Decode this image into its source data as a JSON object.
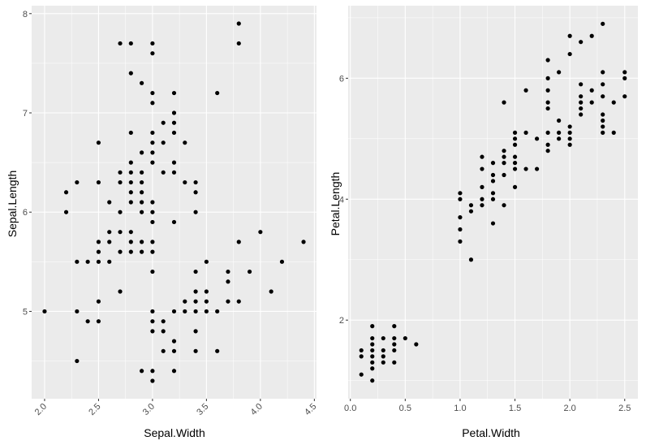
{
  "colors": {
    "panel_background": "#ebebeb",
    "grid_major": "#ffffff",
    "point": "#000000",
    "tick_label": "#4d4d4d"
  },
  "chart_data": [
    {
      "type": "scatter",
      "xlabel": "Sepal.Width",
      "ylabel": "Sepal.Length",
      "xlim": [
        1.88,
        4.52
      ],
      "ylim": [
        4.12,
        8.08
      ],
      "xticks": [
        2.0,
        2.5,
        3.0,
        3.5,
        4.0,
        4.5
      ],
      "xtick_labels": [
        "2.0",
        "2.5",
        "3.0",
        "3.5",
        "4.0",
        "4.5"
      ],
      "xtick_rotation": 45,
      "yticks": [
        5,
        6,
        7,
        8
      ],
      "ytick_labels": [
        "5",
        "6",
        "7",
        "8"
      ],
      "grid": true,
      "points": [
        [
          2.0,
          5.0
        ],
        [
          2.2,
          6.2
        ],
        [
          2.2,
          6.0
        ],
        [
          2.3,
          6.3
        ],
        [
          2.3,
          5.5
        ],
        [
          2.3,
          5.0
        ],
        [
          2.3,
          4.5
        ],
        [
          2.4,
          5.5
        ],
        [
          2.4,
          4.9
        ],
        [
          2.5,
          6.7
        ],
        [
          2.5,
          6.3
        ],
        [
          2.5,
          5.7
        ],
        [
          2.5,
          5.6
        ],
        [
          2.5,
          5.5
        ],
        [
          2.5,
          5.1
        ],
        [
          2.5,
          4.9
        ],
        [
          2.6,
          6.1
        ],
        [
          2.6,
          5.8
        ],
        [
          2.6,
          5.7
        ],
        [
          2.6,
          5.5
        ],
        [
          2.7,
          7.7
        ],
        [
          2.7,
          6.4
        ],
        [
          2.7,
          6.3
        ],
        [
          2.7,
          6.0
        ],
        [
          2.7,
          5.8
        ],
        [
          2.7,
          5.6
        ],
        [
          2.7,
          5.2
        ],
        [
          2.8,
          7.7
        ],
        [
          2.8,
          7.4
        ],
        [
          2.8,
          6.8
        ],
        [
          2.8,
          6.5
        ],
        [
          2.8,
          6.4
        ],
        [
          2.8,
          6.3
        ],
        [
          2.8,
          6.2
        ],
        [
          2.8,
          6.1
        ],
        [
          2.8,
          5.8
        ],
        [
          2.8,
          5.7
        ],
        [
          2.8,
          5.6
        ],
        [
          2.9,
          7.3
        ],
        [
          2.9,
          6.6
        ],
        [
          2.9,
          6.4
        ],
        [
          2.9,
          6.3
        ],
        [
          2.9,
          6.2
        ],
        [
          2.9,
          6.1
        ],
        [
          2.9,
          6.0
        ],
        [
          2.9,
          5.7
        ],
        [
          2.9,
          5.6
        ],
        [
          2.9,
          4.4
        ],
        [
          3.0,
          7.7
        ],
        [
          3.0,
          7.6
        ],
        [
          3.0,
          7.2
        ],
        [
          3.0,
          7.1
        ],
        [
          3.0,
          6.8
        ],
        [
          3.0,
          6.7
        ],
        [
          3.0,
          6.6
        ],
        [
          3.0,
          6.5
        ],
        [
          3.0,
          6.1
        ],
        [
          3.0,
          6.0
        ],
        [
          3.0,
          5.9
        ],
        [
          3.0,
          5.7
        ],
        [
          3.0,
          5.6
        ],
        [
          3.0,
          5.4
        ],
        [
          3.0,
          5.0
        ],
        [
          3.0,
          4.9
        ],
        [
          3.0,
          4.8
        ],
        [
          3.0,
          4.4
        ],
        [
          3.0,
          4.3
        ],
        [
          3.1,
          6.9
        ],
        [
          3.1,
          6.7
        ],
        [
          3.1,
          6.4
        ],
        [
          3.1,
          4.9
        ],
        [
          3.1,
          4.8
        ],
        [
          3.1,
          4.6
        ],
        [
          3.2,
          7.2
        ],
        [
          3.2,
          7.0
        ],
        [
          3.2,
          6.9
        ],
        [
          3.2,
          6.8
        ],
        [
          3.2,
          6.5
        ],
        [
          3.2,
          6.4
        ],
        [
          3.2,
          5.9
        ],
        [
          3.2,
          5.0
        ],
        [
          3.2,
          4.7
        ],
        [
          3.2,
          4.6
        ],
        [
          3.2,
          4.4
        ],
        [
          3.3,
          6.7
        ],
        [
          3.3,
          6.3
        ],
        [
          3.3,
          5.1
        ],
        [
          3.3,
          5.0
        ],
        [
          3.4,
          6.3
        ],
        [
          3.4,
          6.2
        ],
        [
          3.4,
          6.0
        ],
        [
          3.4,
          5.4
        ],
        [
          3.4,
          5.2
        ],
        [
          3.4,
          5.1
        ],
        [
          3.4,
          5.0
        ],
        [
          3.4,
          4.8
        ],
        [
          3.4,
          4.6
        ],
        [
          3.5,
          5.5
        ],
        [
          3.5,
          5.2
        ],
        [
          3.5,
          5.1
        ],
        [
          3.5,
          5.0
        ],
        [
          3.6,
          7.2
        ],
        [
          3.6,
          5.0
        ],
        [
          3.6,
          4.6
        ],
        [
          3.7,
          5.4
        ],
        [
          3.7,
          5.3
        ],
        [
          3.7,
          5.1
        ],
        [
          3.8,
          7.9
        ],
        [
          3.8,
          7.7
        ],
        [
          3.8,
          5.7
        ],
        [
          3.8,
          5.1
        ],
        [
          3.9,
          5.4
        ],
        [
          4.0,
          5.8
        ],
        [
          4.1,
          5.2
        ],
        [
          4.2,
          5.5
        ],
        [
          4.4,
          5.7
        ]
      ]
    },
    {
      "type": "scatter",
      "xlabel": "Petal.Width",
      "ylabel": "Petal.Length",
      "xlim": [
        -0.02,
        2.62
      ],
      "ylim": [
        0.7,
        7.2
      ],
      "xticks": [
        0.0,
        0.5,
        1.0,
        1.5,
        2.0,
        2.5
      ],
      "xtick_labels": [
        "0.0",
        "0.5",
        "1.0",
        "1.5",
        "2.0",
        "2.5"
      ],
      "xtick_rotation": 0,
      "yticks": [
        2,
        4,
        6
      ],
      "ytick_labels": [
        "2",
        "4",
        "6"
      ],
      "grid": true,
      "points": [
        [
          0.1,
          1.5
        ],
        [
          0.1,
          1.4
        ],
        [
          0.1,
          1.1
        ],
        [
          0.2,
          1.9
        ],
        [
          0.2,
          1.7
        ],
        [
          0.2,
          1.6
        ],
        [
          0.2,
          1.5
        ],
        [
          0.2,
          1.4
        ],
        [
          0.2,
          1.3
        ],
        [
          0.2,
          1.2
        ],
        [
          0.2,
          1.0
        ],
        [
          0.3,
          1.7
        ],
        [
          0.3,
          1.5
        ],
        [
          0.3,
          1.4
        ],
        [
          0.3,
          1.3
        ],
        [
          0.4,
          1.9
        ],
        [
          0.4,
          1.7
        ],
        [
          0.4,
          1.6
        ],
        [
          0.4,
          1.5
        ],
        [
          0.4,
          1.3
        ],
        [
          0.5,
          1.7
        ],
        [
          0.6,
          1.6
        ],
        [
          1.0,
          4.1
        ],
        [
          1.0,
          4.0
        ],
        [
          1.0,
          3.7
        ],
        [
          1.0,
          3.5
        ],
        [
          1.0,
          3.3
        ],
        [
          1.1,
          3.9
        ],
        [
          1.1,
          3.8
        ],
        [
          1.1,
          3.0
        ],
        [
          1.2,
          4.7
        ],
        [
          1.2,
          4.5
        ],
        [
          1.2,
          4.2
        ],
        [
          1.2,
          4.0
        ],
        [
          1.2,
          3.9
        ],
        [
          1.3,
          4.6
        ],
        [
          1.3,
          4.4
        ],
        [
          1.3,
          4.3
        ],
        [
          1.3,
          4.1
        ],
        [
          1.3,
          4.0
        ],
        [
          1.3,
          3.6
        ],
        [
          1.4,
          5.6
        ],
        [
          1.4,
          4.8
        ],
        [
          1.4,
          4.7
        ],
        [
          1.4,
          4.6
        ],
        [
          1.4,
          4.4
        ],
        [
          1.4,
          3.9
        ],
        [
          1.5,
          5.1
        ],
        [
          1.5,
          5.0
        ],
        [
          1.5,
          4.9
        ],
        [
          1.5,
          4.7
        ],
        [
          1.5,
          4.6
        ],
        [
          1.5,
          4.5
        ],
        [
          1.5,
          4.2
        ],
        [
          1.6,
          5.8
        ],
        [
          1.6,
          5.1
        ],
        [
          1.6,
          4.5
        ],
        [
          1.7,
          5.0
        ],
        [
          1.7,
          4.5
        ],
        [
          1.8,
          6.3
        ],
        [
          1.8,
          6.0
        ],
        [
          1.8,
          5.8
        ],
        [
          1.8,
          5.6
        ],
        [
          1.8,
          5.5
        ],
        [
          1.8,
          5.1
        ],
        [
          1.8,
          4.9
        ],
        [
          1.8,
          4.8
        ],
        [
          1.9,
          6.1
        ],
        [
          1.9,
          5.3
        ],
        [
          1.9,
          5.1
        ],
        [
          1.9,
          5.0
        ],
        [
          2.0,
          6.7
        ],
        [
          2.0,
          6.4
        ],
        [
          2.0,
          5.2
        ],
        [
          2.0,
          5.1
        ],
        [
          2.0,
          5.0
        ],
        [
          2.0,
          4.9
        ],
        [
          2.1,
          6.6
        ],
        [
          2.1,
          5.9
        ],
        [
          2.1,
          5.7
        ],
        [
          2.1,
          5.6
        ],
        [
          2.1,
          5.5
        ],
        [
          2.1,
          5.4
        ],
        [
          2.2,
          6.7
        ],
        [
          2.2,
          5.8
        ],
        [
          2.2,
          5.6
        ],
        [
          2.3,
          6.9
        ],
        [
          2.3,
          6.1
        ],
        [
          2.3,
          5.9
        ],
        [
          2.3,
          5.7
        ],
        [
          2.3,
          5.4
        ],
        [
          2.3,
          5.3
        ],
        [
          2.3,
          5.2
        ],
        [
          2.3,
          5.1
        ],
        [
          2.4,
          5.6
        ],
        [
          2.4,
          5.1
        ],
        [
          2.5,
          6.1
        ],
        [
          2.5,
          6.0
        ],
        [
          2.5,
          5.7
        ]
      ]
    }
  ]
}
